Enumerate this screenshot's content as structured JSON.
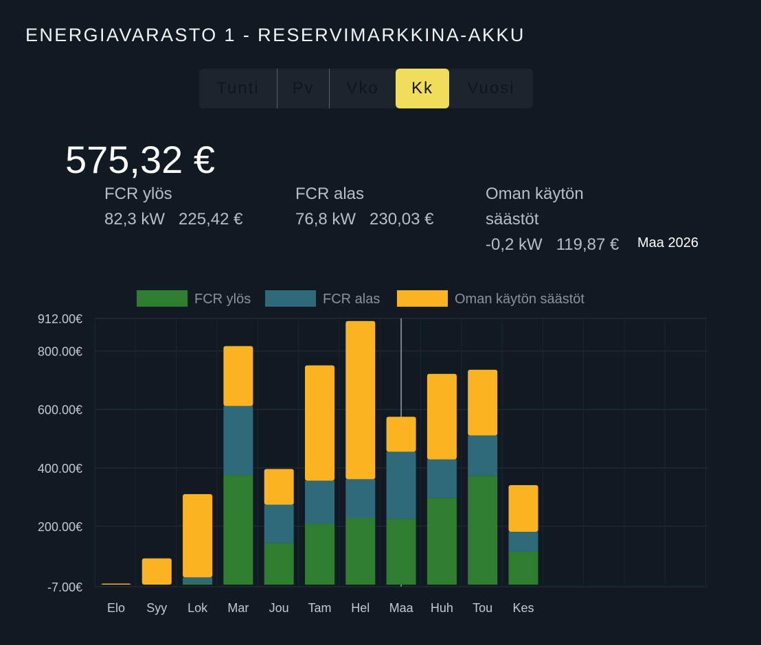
{
  "header": {
    "title": "ENERGIAVARASTO 1 - RESERVIMARKKINA-AKKU"
  },
  "tabs": [
    {
      "label": "Tunti",
      "active": false
    },
    {
      "label": "Pv",
      "active": false
    },
    {
      "label": "Vko",
      "active": false
    },
    {
      "label": "Kk",
      "active": true
    },
    {
      "label": "Vuosi",
      "active": false
    }
  ],
  "summary": {
    "total": "575,32 €",
    "fcr_up": {
      "label": "FCR ylös",
      "power": "82,3 kW",
      "amount": "225,42 €"
    },
    "fcr_down": {
      "label": "FCR alas",
      "power": "76,8 kW",
      "amount": "230,03 €"
    },
    "self_use": {
      "label_line1": "Oman käytön",
      "label_line2": "säästöt",
      "power": "-0,2 kW",
      "amount": "119,87 €"
    },
    "period": "Maa 2026"
  },
  "colors": {
    "fcr_up": "#2f7d2f",
    "fcr_down": "#2f6a7a",
    "self_use": "#fbb321",
    "active_tab": "#f0de5a"
  },
  "chart_data": {
    "type": "bar",
    "stacked": true,
    "categories": [
      "Elo",
      "Syy",
      "Lok",
      "Mar",
      "Jou",
      "Tam",
      "Hel",
      "Maa",
      "Huh",
      "Tou",
      "Kes"
    ],
    "series": [
      {
        "name": "FCR ylös",
        "values": [
          0,
          0,
          5,
          375,
          142,
          208,
          228,
          225,
          297,
          373,
          113
        ]
      },
      {
        "name": "FCR alas",
        "values": [
          0,
          0,
          20,
          237,
          132,
          148,
          133,
          230,
          132,
          138,
          68
        ]
      },
      {
        "name": "Oman käytön säästöt",
        "values": [
          2,
          90,
          285,
          205,
          122,
          395,
          542,
          120,
          293,
          225,
          160
        ]
      }
    ],
    "y_ticks": [
      "912.00€",
      "800.00€",
      "600.00€",
      "400.00€",
      "200.00€",
      "-7.00€"
    ],
    "ylim": [
      -7,
      912
    ],
    "highlight_category": "Maa",
    "legend_position": "top",
    "grid": true
  }
}
